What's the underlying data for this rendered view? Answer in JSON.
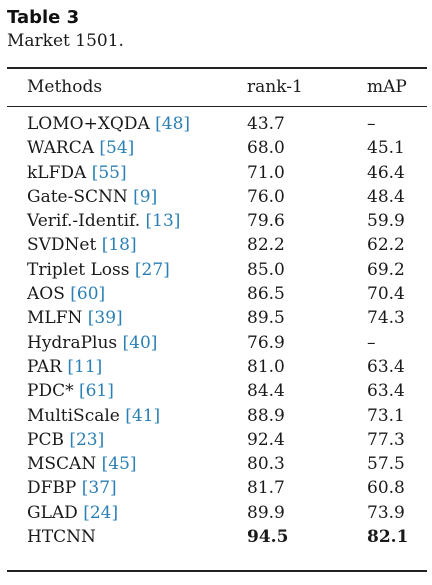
{
  "caption": {
    "label": "Table 3",
    "text": "Market 1501."
  },
  "table": {
    "headers": [
      "Methods",
      "rank-1",
      "mAP"
    ],
    "rows": [
      {
        "method": "LOMO+XQDA",
        "cite": "[48]",
        "rank1": "43.7",
        "map": "–"
      },
      {
        "method": "WARCA",
        "cite": "[54]",
        "rank1": "68.0",
        "map": "45.1"
      },
      {
        "method": "kLFDA",
        "cite": "[55]",
        "rank1": "71.0",
        "map": "46.4"
      },
      {
        "method": "Gate-SCNN",
        "cite": "[9]",
        "rank1": "76.0",
        "map": "48.4"
      },
      {
        "method": "Verif.-Identif.",
        "cite": "[13]",
        "rank1": "79.6",
        "map": "59.9"
      },
      {
        "method": "SVDNet",
        "cite": "[18]",
        "rank1": "82.2",
        "map": "62.2"
      },
      {
        "method": "Triplet Loss",
        "cite": "[27]",
        "rank1": "85.0",
        "map": "69.2"
      },
      {
        "method": "AOS",
        "cite": "[60]",
        "rank1": "86.5",
        "map": "70.4"
      },
      {
        "method": "MLFN",
        "cite": "[39]",
        "rank1": "89.5",
        "map": "74.3"
      },
      {
        "method": "HydraPlus",
        "cite": "[40]",
        "rank1": "76.9",
        "map": "–"
      },
      {
        "method": "PAR",
        "cite": "[11]",
        "rank1": "81.0",
        "map": "63.4"
      },
      {
        "method": "PDC*",
        "cite": "[61]",
        "rank1": "84.4",
        "map": "63.4"
      },
      {
        "method": "MultiScale",
        "cite": "[41]",
        "rank1": "88.9",
        "map": "73.1"
      },
      {
        "method": "PCB",
        "cite": "[23]",
        "rank1": "92.4",
        "map": "77.3"
      },
      {
        "method": "MSCAN",
        "cite": "[45]",
        "rank1": "80.3",
        "map": "57.5"
      },
      {
        "method": "DFBP",
        "cite": "[37]",
        "rank1": "81.7",
        "map": "60.8"
      },
      {
        "method": "GLAD",
        "cite": "[24]",
        "rank1": "89.9",
        "map": "73.9"
      },
      {
        "method": "HTCNN",
        "cite": "",
        "rank1": "94.5",
        "map": "82.1",
        "bold": true
      }
    ]
  },
  "colors": {
    "citation": "#2a7fb5",
    "text": "#1a1a1a",
    "rule": "#222222"
  }
}
